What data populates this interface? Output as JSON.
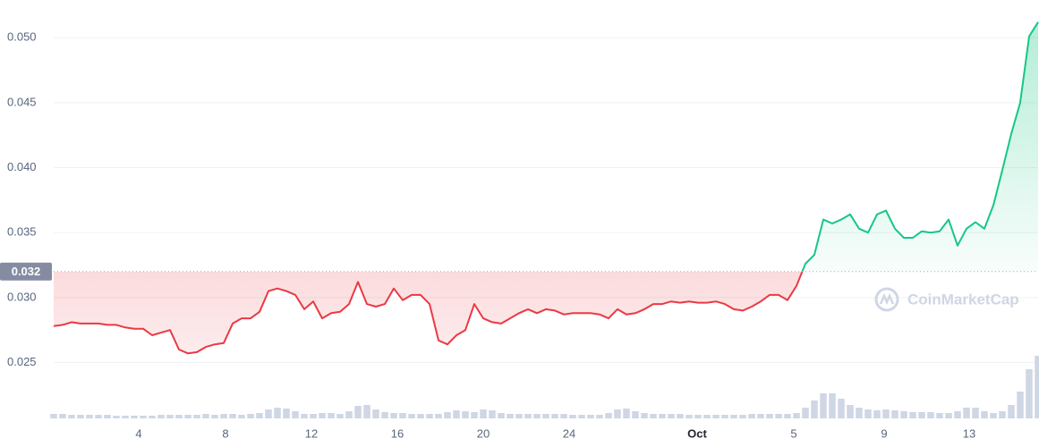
{
  "chart_data": {
    "type": "line",
    "values": [
      0.0278,
      0.0279,
      0.0281,
      0.028,
      0.028,
      0.028,
      0.0279,
      0.0279,
      0.0277,
      0.0276,
      0.0276,
      0.0271,
      0.0273,
      0.0275,
      0.026,
      0.0257,
      0.0258,
      0.0262,
      0.0264,
      0.0265,
      0.028,
      0.0284,
      0.0284,
      0.0289,
      0.0305,
      0.0307,
      0.0305,
      0.0302,
      0.0291,
      0.0297,
      0.0284,
      0.0288,
      0.0289,
      0.0295,
      0.0312,
      0.0295,
      0.0293,
      0.0295,
      0.0307,
      0.0298,
      0.0302,
      0.0302,
      0.0295,
      0.0267,
      0.0264,
      0.0271,
      0.0275,
      0.0295,
      0.0284,
      0.0281,
      0.028,
      0.0284,
      0.0288,
      0.0291,
      0.0288,
      0.0291,
      0.029,
      0.0287,
      0.0288,
      0.0288,
      0.0288,
      0.0287,
      0.0284,
      0.0291,
      0.0287,
      0.0288,
      0.0291,
      0.0295,
      0.0295,
      0.0297,
      0.0296,
      0.0297,
      0.0296,
      0.0296,
      0.0297,
      0.0295,
      0.0291,
      0.029,
      0.0293,
      0.0297,
      0.0302,
      0.0302,
      0.0298,
      0.0309,
      0.0326,
      0.0333,
      0.036,
      0.0357,
      0.036,
      0.0364,
      0.0353,
      0.035,
      0.0364,
      0.0367,
      0.0353,
      0.0346,
      0.0346,
      0.0351,
      0.035,
      0.0351,
      0.036,
      0.034,
      0.0353,
      0.0358,
      0.0353,
      0.0371,
      0.0398,
      0.0426,
      0.045,
      0.0501,
      0.0512
    ],
    "volume": [
      5,
      5,
      4,
      4,
      4,
      4,
      4,
      3,
      3,
      3,
      3,
      3,
      4,
      4,
      4,
      4,
      4,
      5,
      4,
      5,
      5,
      4,
      5,
      6,
      10,
      12,
      11,
      8,
      5,
      5,
      6,
      6,
      5,
      8,
      14,
      15,
      10,
      7,
      6,
      6,
      5,
      5,
      5,
      5,
      7,
      9,
      8,
      7,
      10,
      9,
      6,
      5,
      5,
      5,
      5,
      5,
      5,
      5,
      4,
      4,
      4,
      4,
      6,
      10,
      11,
      8,
      6,
      5,
      5,
      5,
      5,
      4,
      4,
      4,
      4,
      4,
      4,
      4,
      5,
      5,
      5,
      5,
      5,
      6,
      12,
      20,
      28,
      28,
      22,
      15,
      12,
      10,
      9,
      10,
      9,
      8,
      7,
      7,
      7,
      6,
      6,
      8,
      12,
      12,
      8,
      6,
      8,
      15,
      30,
      55,
      70
    ],
    "baseline": 0.032,
    "up_color": "#16c784",
    "down_color": "#ea3943",
    "volume_color": "#cfd6e4",
    "ylim": [
      0.0207,
      0.0529
    ],
    "yticks": [
      0.025,
      {
        "value": 0.03,
        "label": "0.030"
      },
      0.035,
      {
        "value": 0.04,
        "label": "0.040"
      },
      0.045,
      {
        "value": 0.05,
        "label": "0.050"
      }
    ],
    "xticks": [
      {
        "value": 9.5,
        "label": "4"
      },
      {
        "value": 19.2,
        "label": "8"
      },
      {
        "value": 28.8,
        "label": "12"
      },
      {
        "value": 38.4,
        "label": "16"
      },
      {
        "value": 48,
        "label": "20"
      },
      {
        "value": 57.6,
        "label": "24"
      },
      {
        "value": 71.9,
        "label": "Oct"
      },
      {
        "value": 82.7,
        "label": "5"
      },
      {
        "value": 92.8,
        "label": "9"
      },
      {
        "value": 102.3,
        "label": "13"
      }
    ],
    "grid": true,
    "watermark": "CoinMarketCap"
  }
}
